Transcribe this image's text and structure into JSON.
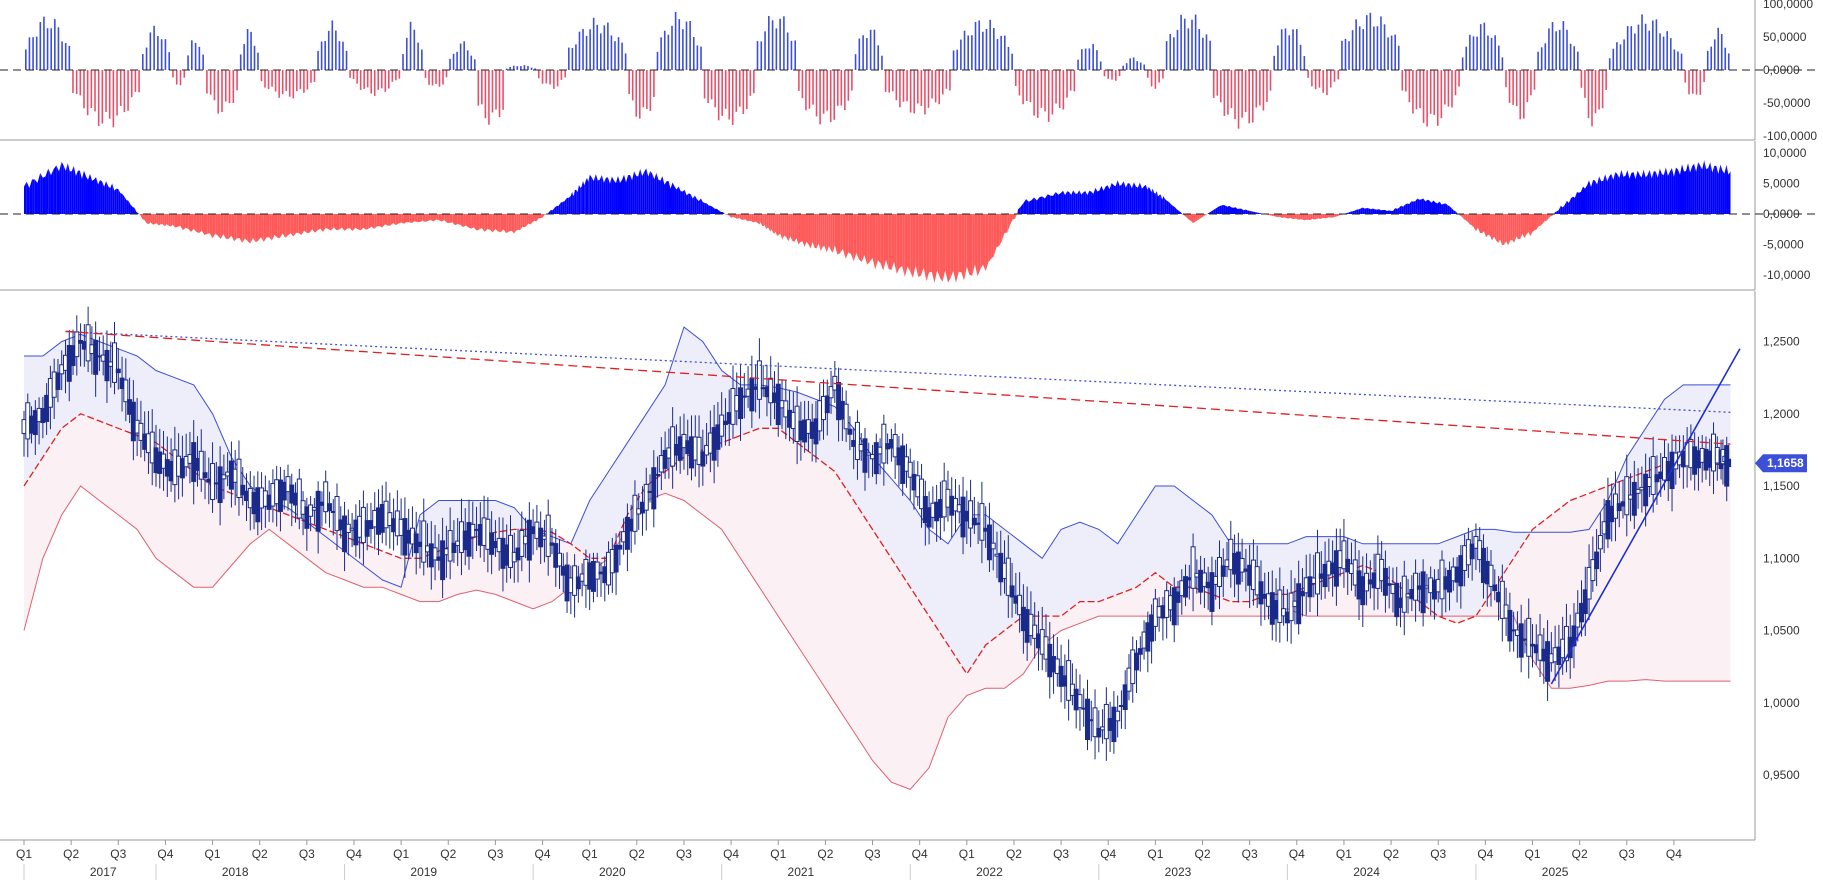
{
  "chart_data": [
    {
      "type": "bar",
      "panel": "upper-oscillator",
      "title": "",
      "ylim": [
        -100000,
        100000
      ],
      "yticks": [
        "100,0000",
        "50,0000",
        "0,0000",
        "-50,0000",
        "-100,0000"
      ],
      "ytick_values": [
        100000,
        50000,
        0,
        -50000,
        -100000
      ],
      "colors": {
        "positive": "#3b4fd8",
        "negative": "#e8506a"
      },
      "series": [
        {
          "x_start": 2017.0,
          "x_end": 2025.6,
          "step": 0.0192,
          "values_description_only": "weekly histogram oscillating between about -90000 and 90000"
        }
      ],
      "segments": [
        [
          2017.0,
          2017.25,
          30000,
          85000
        ],
        [
          2017.25,
          2017.62,
          -30000,
          -90000
        ],
        [
          2017.62,
          2017.78,
          20000,
          70000
        ],
        [
          2017.78,
          2017.86,
          -10000,
          -25000
        ],
        [
          2017.86,
          2017.96,
          10000,
          55000
        ],
        [
          2017.96,
          2018.14,
          -30000,
          -70000
        ],
        [
          2018.14,
          2018.25,
          20000,
          65000
        ],
        [
          2018.25,
          2018.55,
          -20000,
          -45000
        ],
        [
          2018.55,
          2018.72,
          20000,
          75000
        ],
        [
          2018.72,
          2019.0,
          -10000,
          -40000
        ],
        [
          2019.0,
          2019.12,
          20000,
          75000
        ],
        [
          2019.12,
          2019.25,
          -10000,
          -30000
        ],
        [
          2019.25,
          2019.4,
          10000,
          45000
        ],
        [
          2019.4,
          2019.55,
          -60000,
          -85000
        ],
        [
          2019.55,
          2019.72,
          2000,
          8000
        ],
        [
          2019.72,
          2019.88,
          -10000,
          -30000
        ],
        [
          2019.88,
          2020.2,
          30000,
          80000
        ],
        [
          2020.2,
          2020.35,
          -40000,
          -80000
        ],
        [
          2020.35,
          2020.6,
          30000,
          90000
        ],
        [
          2020.6,
          2020.88,
          -40000,
          -85000
        ],
        [
          2020.88,
          2021.1,
          40000,
          90000
        ],
        [
          2021.1,
          2021.4,
          -40000,
          -85000
        ],
        [
          2021.4,
          2021.56,
          20000,
          70000
        ],
        [
          2021.56,
          2021.92,
          -30000,
          -70000
        ],
        [
          2021.92,
          2022.25,
          30000,
          80000
        ],
        [
          2022.25,
          2022.58,
          -30000,
          -80000
        ],
        [
          2022.58,
          2022.72,
          10000,
          45000
        ],
        [
          2022.72,
          2022.82,
          -5000,
          -20000
        ],
        [
          2022.82,
          2022.95,
          5000,
          20000
        ],
        [
          2022.95,
          2023.05,
          -10000,
          -30000
        ],
        [
          2023.05,
          2023.3,
          40000,
          90000
        ],
        [
          2023.3,
          2023.62,
          -40000,
          -90000
        ],
        [
          2023.62,
          2023.8,
          20000,
          75000
        ],
        [
          2023.8,
          2023.98,
          -10000,
          -40000
        ],
        [
          2023.98,
          2024.3,
          40000,
          90000
        ],
        [
          2024.3,
          2024.62,
          -30000,
          -90000
        ],
        [
          2024.62,
          2024.85,
          20000,
          75000
        ],
        [
          2024.85,
          2025.02,
          -20000,
          -80000
        ],
        [
          2025.02,
          2025.25,
          20000,
          80000
        ],
        [
          2025.25,
          2025.4,
          -20000,
          -90000
        ],
        [
          2025.4,
          2025.8,
          20000,
          85000
        ],
        [
          2025.8,
          2025.92,
          -10000,
          -50000
        ],
        [
          2025.92,
          2026.05,
          20000,
          65000
        ]
      ]
    },
    {
      "type": "area",
      "panel": "middle-oscillator",
      "title": "",
      "ylim": [
        -12000,
        11500
      ],
      "yticks": [
        "10,0000",
        "5,0000",
        "0,0000",
        "-5,0000",
        "-10,0000"
      ],
      "ytick_values": [
        10000,
        5000,
        0,
        -5000,
        -10000
      ],
      "colors": {
        "positive": "#0000ff",
        "negative": "#ff5a5a"
      },
      "x": [
        2017.0,
        2017.2,
        2017.35,
        2017.5,
        2017.65,
        2017.8,
        2018.0,
        2018.2,
        2018.4,
        2018.6,
        2018.8,
        2019.0,
        2019.2,
        2019.4,
        2019.6,
        2019.75,
        2019.9,
        2020.0,
        2020.15,
        2020.3,
        2020.45,
        2020.6,
        2020.75,
        2020.9,
        2021.0,
        2021.15,
        2021.3,
        2021.5,
        2021.7,
        2021.9,
        2022.1,
        2022.3,
        2022.5,
        2022.65,
        2022.8,
        2022.95,
        2023.05,
        2023.2,
        2023.35,
        2023.5,
        2023.65,
        2023.8,
        2023.95,
        2024.1,
        2024.25,
        2024.4,
        2024.55,
        2024.7,
        2024.85,
        2025.0,
        2025.15,
        2025.3,
        2025.45,
        2025.6,
        2025.75,
        2025.9,
        2026.05
      ],
      "values": [
        4500,
        8000,
        6000,
        4000,
        -1500,
        -2000,
        -3500,
        -4500,
        -3500,
        -2500,
        -2500,
        -1500,
        -1000,
        -2500,
        -3000,
        -500,
        3000,
        6000,
        5500,
        7000,
        4500,
        2000,
        -500,
        -1500,
        -3500,
        -5000,
        -6000,
        -8000,
        -9500,
        -10500,
        -9000,
        2000,
        3500,
        3500,
        5000,
        4500,
        2500,
        -1500,
        1500,
        500,
        -500,
        -1000,
        -500,
        1000,
        500,
        2500,
        1500,
        -2500,
        -5000,
        -3000,
        1000,
        5000,
        6500,
        6500,
        7000,
        8000,
        7000
      ]
    },
    {
      "type": "line",
      "panel": "price",
      "title": "",
      "ylim": [
        0.905,
        1.285
      ],
      "yticks": [
        "1,2500",
        "1,2000",
        "1,1500",
        "1,1000",
        "1,0500",
        "1,0000",
        "0,9500"
      ],
      "ytick_values": [
        1.25,
        1.2,
        1.15,
        1.1,
        1.05,
        1.0,
        0.95
      ],
      "last_price_label": "1,1658",
      "last_price": 1.1658,
      "colors": {
        "candle": "#1a2a8a",
        "upper_band": "#3b4fd8",
        "lower_band": "#e06070",
        "middle": "#e02020",
        "trend": "#1f2fd0",
        "upper_fill": "#eeeefb",
        "lower_fill": "#fbf0f3"
      },
      "x": [
        2017.0,
        2017.1,
        2017.2,
        2017.3,
        2017.4,
        2017.5,
        2017.6,
        2017.7,
        2017.8,
        2017.9,
        2018.0,
        2018.1,
        2018.2,
        2018.3,
        2018.4,
        2018.5,
        2018.6,
        2018.7,
        2018.8,
        2018.9,
        2019.0,
        2019.1,
        2019.2,
        2019.3,
        2019.4,
        2019.5,
        2019.6,
        2019.7,
        2019.8,
        2019.9,
        2020.0,
        2020.1,
        2020.2,
        2020.3,
        2020.4,
        2020.5,
        2020.6,
        2020.7,
        2020.8,
        2020.9,
        2021.0,
        2021.1,
        2021.2,
        2021.3,
        2021.4,
        2021.5,
        2021.6,
        2021.7,
        2021.8,
        2021.9,
        2022.0,
        2022.1,
        2022.2,
        2022.3,
        2022.4,
        2022.5,
        2022.6,
        2022.7,
        2022.8,
        2022.9,
        2023.0,
        2023.1,
        2023.2,
        2023.3,
        2023.4,
        2023.5,
        2023.6,
        2023.7,
        2023.8,
        2023.9,
        2024.0,
        2024.1,
        2024.2,
        2024.3,
        2024.4,
        2024.5,
        2024.6,
        2024.7,
        2024.8,
        2024.9,
        2025.0,
        2025.1,
        2025.2,
        2025.3,
        2025.4,
        2025.5,
        2025.6,
        2025.7,
        2025.8,
        2025.9,
        2026.0,
        2026.05
      ],
      "close": [
        1.19,
        1.2,
        1.23,
        1.25,
        1.24,
        1.23,
        1.19,
        1.17,
        1.16,
        1.17,
        1.15,
        1.16,
        1.14,
        1.14,
        1.15,
        1.13,
        1.14,
        1.12,
        1.12,
        1.13,
        1.12,
        1.11,
        1.1,
        1.11,
        1.12,
        1.11,
        1.1,
        1.12,
        1.11,
        1.08,
        1.09,
        1.09,
        1.12,
        1.14,
        1.17,
        1.18,
        1.17,
        1.19,
        1.21,
        1.22,
        1.21,
        1.19,
        1.19,
        1.22,
        1.18,
        1.17,
        1.18,
        1.16,
        1.13,
        1.14,
        1.13,
        1.12,
        1.09,
        1.06,
        1.04,
        1.02,
        1.0,
        0.98,
        0.99,
        1.03,
        1.06,
        1.07,
        1.09,
        1.08,
        1.1,
        1.09,
        1.07,
        1.06,
        1.08,
        1.09,
        1.1,
        1.08,
        1.09,
        1.07,
        1.08,
        1.08,
        1.09,
        1.11,
        1.08,
        1.05,
        1.04,
        1.03,
        1.04,
        1.08,
        1.13,
        1.14,
        1.15,
        1.16,
        1.17,
        1.17,
        1.17,
        1.1658
      ],
      "upper_band": [
        1.24,
        1.24,
        1.25,
        1.255,
        1.25,
        1.245,
        1.24,
        1.23,
        1.225,
        1.22,
        1.2,
        1.17,
        1.15,
        1.14,
        1.135,
        1.125,
        1.115,
        1.105,
        1.095,
        1.085,
        1.08,
        1.13,
        1.14,
        1.14,
        1.14,
        1.14,
        1.135,
        1.12,
        1.115,
        1.11,
        1.14,
        1.16,
        1.18,
        1.2,
        1.22,
        1.26,
        1.25,
        1.23,
        1.22,
        1.22,
        1.218,
        1.215,
        1.21,
        1.205,
        1.19,
        1.17,
        1.155,
        1.14,
        1.12,
        1.11,
        1.13,
        1.13,
        1.12,
        1.11,
        1.1,
        1.12,
        1.125,
        1.12,
        1.11,
        1.13,
        1.15,
        1.15,
        1.14,
        1.13,
        1.11,
        1.11,
        1.11,
        1.11,
        1.115,
        1.115,
        1.115,
        1.11,
        1.11,
        1.11,
        1.11,
        1.11,
        1.115,
        1.12,
        1.12,
        1.118,
        1.118,
        1.118,
        1.118,
        1.12,
        1.14,
        1.17,
        1.19,
        1.21,
        1.22,
        1.22,
        1.22,
        1.22
      ],
      "middle_band": [
        1.15,
        1.17,
        1.19,
        1.2,
        1.195,
        1.19,
        1.185,
        1.18,
        1.17,
        1.16,
        1.15,
        1.145,
        1.14,
        1.135,
        1.13,
        1.125,
        1.12,
        1.115,
        1.11,
        1.105,
        1.1,
        1.1,
        1.105,
        1.11,
        1.115,
        1.118,
        1.12,
        1.12,
        1.118,
        1.11,
        1.1,
        1.1,
        1.13,
        1.15,
        1.16,
        1.17,
        1.175,
        1.18,
        1.185,
        1.19,
        1.19,
        1.18,
        1.17,
        1.16,
        1.14,
        1.12,
        1.1,
        1.08,
        1.06,
        1.04,
        1.02,
        1.04,
        1.05,
        1.06,
        1.06,
        1.06,
        1.07,
        1.07,
        1.075,
        1.08,
        1.09,
        1.08,
        1.08,
        1.075,
        1.07,
        1.07,
        1.075,
        1.075,
        1.08,
        1.085,
        1.09,
        1.095,
        1.09,
        1.08,
        1.07,
        1.06,
        1.055,
        1.06,
        1.08,
        1.1,
        1.12,
        1.13,
        1.14,
        1.145,
        1.15,
        1.155,
        1.16,
        1.165,
        1.165,
        1.165,
        1.165,
        1.165
      ],
      "lower_band": [
        1.05,
        1.1,
        1.13,
        1.15,
        1.14,
        1.13,
        1.12,
        1.1,
        1.09,
        1.08,
        1.08,
        1.095,
        1.11,
        1.12,
        1.11,
        1.1,
        1.09,
        1.085,
        1.08,
        1.08,
        1.075,
        1.07,
        1.07,
        1.075,
        1.078,
        1.075,
        1.07,
        1.065,
        1.07,
        1.08,
        1.09,
        1.1,
        1.12,
        1.14,
        1.145,
        1.14,
        1.13,
        1.12,
        1.1,
        1.08,
        1.06,
        1.04,
        1.02,
        1.0,
        0.98,
        0.96,
        0.945,
        0.94,
        0.955,
        0.99,
        1.005,
        1.01,
        1.01,
        1.02,
        1.04,
        1.05,
        1.055,
        1.06,
        1.06,
        1.06,
        1.06,
        1.06,
        1.06,
        1.06,
        1.06,
        1.06,
        1.06,
        1.065,
        1.06,
        1.06,
        1.06,
        1.06,
        1.06,
        1.06,
        1.06,
        1.06,
        1.06,
        1.06,
        1.06,
        1.06,
        1.03,
        1.01,
        1.01,
        1.012,
        1.015,
        1.015,
        1.016,
        1.015,
        1.015,
        1.015,
        1.015,
        1.015
      ],
      "xticks": [
        {
          "label": "Q1",
          "x": 2017.0
        },
        {
          "label": "Q2",
          "x": 2017.25
        },
        {
          "label": "Q3",
          "x": 2017.5
        },
        {
          "label": "Q4",
          "x": 2017.75
        },
        {
          "label": "Q1",
          "x": 2018.0
        },
        {
          "label": "Q2",
          "x": 2018.25
        },
        {
          "label": "Q3",
          "x": 2018.5
        },
        {
          "label": "Q4",
          "x": 2018.75
        },
        {
          "label": "Q1",
          "x": 2019.0
        },
        {
          "label": "Q2",
          "x": 2019.25
        },
        {
          "label": "Q3",
          "x": 2019.5
        },
        {
          "label": "Q4",
          "x": 2019.75
        },
        {
          "label": "Q1",
          "x": 2020.0
        },
        {
          "label": "Q2",
          "x": 2020.25
        },
        {
          "label": "Q3",
          "x": 2020.5
        },
        {
          "label": "Q4",
          "x": 2020.75
        },
        {
          "label": "Q1",
          "x": 2021.0
        },
        {
          "label": "Q2",
          "x": 2021.25
        },
        {
          "label": "Q3",
          "x": 2021.5
        },
        {
          "label": "Q4",
          "x": 2021.75
        },
        {
          "label": "Q1",
          "x": 2022.0
        },
        {
          "label": "Q2",
          "x": 2022.25
        },
        {
          "label": "Q3",
          "x": 2022.5
        },
        {
          "label": "Q4",
          "x": 2022.75
        },
        {
          "label": "Q1",
          "x": 2023.0
        },
        {
          "label": "Q2",
          "x": 2023.25
        },
        {
          "label": "Q3",
          "x": 2023.5
        },
        {
          "label": "Q4",
          "x": 2023.75
        },
        {
          "label": "Q1",
          "x": 2024.0
        },
        {
          "label": "Q2",
          "x": 2024.25
        },
        {
          "label": "Q3",
          "x": 2024.5
        },
        {
          "label": "Q4",
          "x": 2024.75
        },
        {
          "label": "Q1",
          "x": 2025.0
        },
        {
          "label": "Q2",
          "x": 2025.25
        },
        {
          "label": "Q3",
          "x": 2025.5
        },
        {
          "label": "Q4",
          "x": 2025.75
        }
      ],
      "year_labels": [
        {
          "label": "2017",
          "x": 2016.9
        },
        {
          "label": "2018",
          "x": 2017.6
        },
        {
          "label": "2019",
          "x": 2018.6
        },
        {
          "label": "2020",
          "x": 2019.6
        },
        {
          "label": "2021",
          "x": 2020.6
        },
        {
          "label": "2022",
          "x": 2021.6
        },
        {
          "label": "2023",
          "x": 2022.6
        },
        {
          "label": "2024",
          "x": 2023.6
        },
        {
          "label": "2025",
          "x": 2024.6
        }
      ],
      "trendlines": [
        {
          "style": "dotted",
          "color": "#3b4fd8",
          "from": [
            2017.22,
            1.257
          ],
          "to": [
            2026.05,
            1.201
          ]
        },
        {
          "style": "dashed",
          "color": "#e02020",
          "from": [
            2017.22,
            1.257
          ],
          "to": [
            2026.05,
            1.179
          ]
        },
        {
          "style": "solid",
          "color": "#1f2fd0",
          "from": [
            2025.1,
            1.013
          ],
          "to": [
            2026.1,
            1.245
          ]
        }
      ]
    }
  ]
}
